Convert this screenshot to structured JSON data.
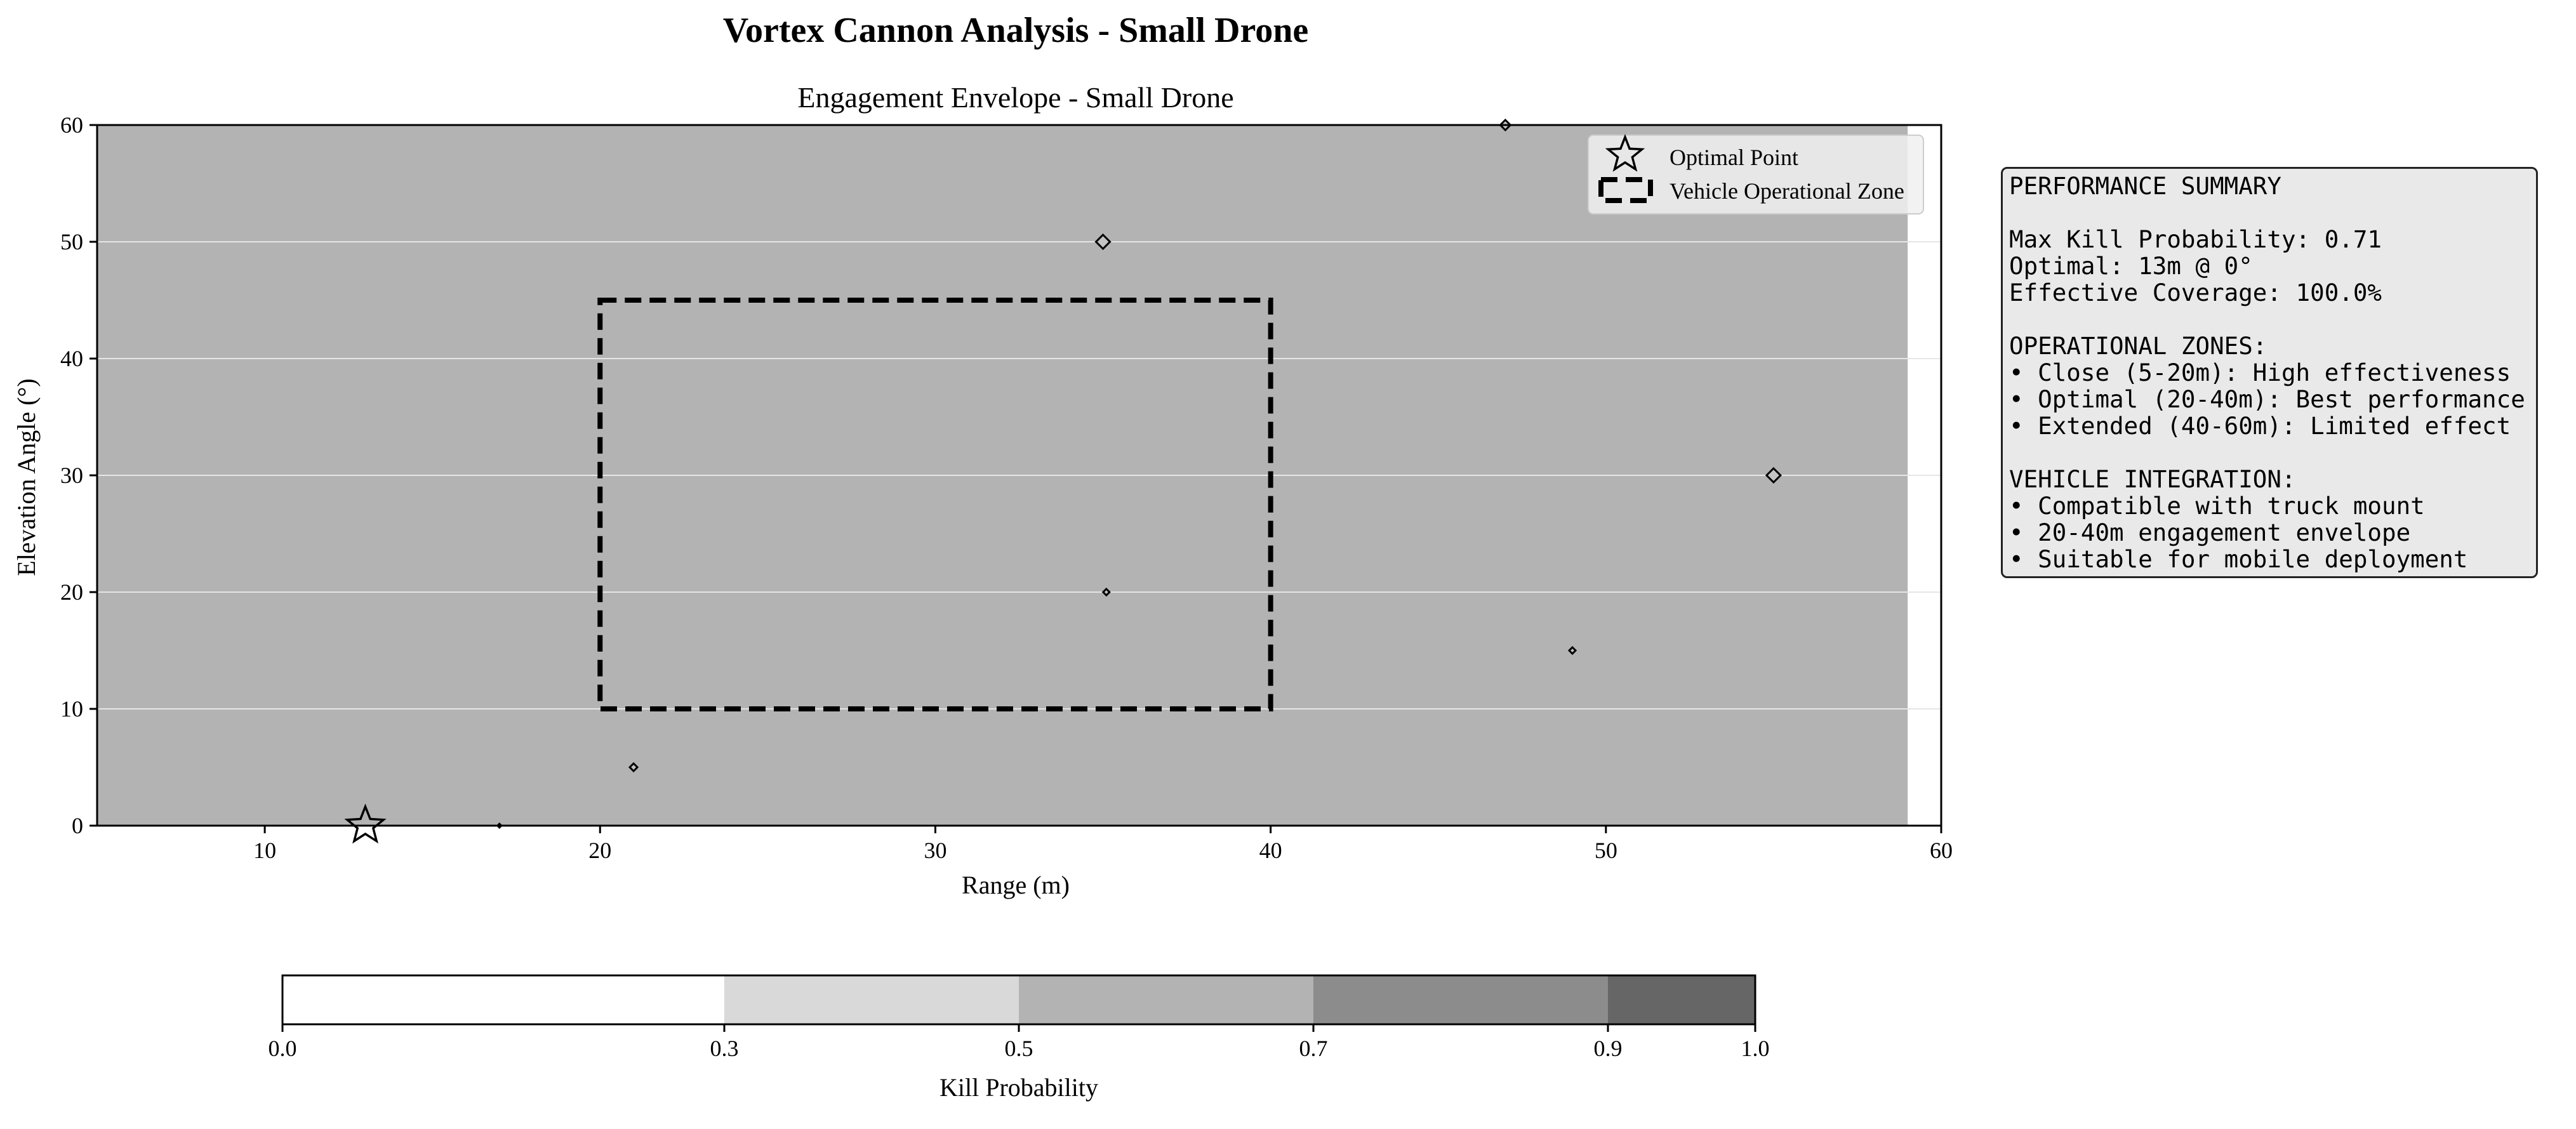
{
  "figure_title": "Vortex Cannon Analysis - Small Drone",
  "colors": {
    "fill_0_03": "#ffffff",
    "fill_03_05": "#d9d9d9",
    "fill_05_07": "#b3b3b3",
    "fill_07_09": "#8c8c8c",
    "fill_09_10": "#666666",
    "outline": "#000000",
    "panel_bg": "#e9e9e9"
  },
  "chart_data": {
    "type": "heatmap",
    "title": "Engagement Envelope - Small Drone",
    "xlabel": "Range (m)",
    "ylabel": "Elevation Angle (°)",
    "xlim": [
      5,
      60
    ],
    "ylim": [
      0,
      60
    ],
    "data_extent": {
      "x": [
        5,
        59
      ],
      "y": [
        0,
        60
      ]
    },
    "x_ticks": [
      10,
      20,
      30,
      40,
      50,
      60
    ],
    "y_ticks": [
      0,
      10,
      20,
      30,
      40,
      50,
      60
    ],
    "field_level": "0.5-0.7",
    "grid": true,
    "contour_islands": [
      {
        "x": 35,
        "y": 50
      },
      {
        "x": 55,
        "y": 30
      },
      {
        "x": 35.1,
        "y": 20
      },
      {
        "x": 49,
        "y": 15
      },
      {
        "x": 21,
        "y": 5
      },
      {
        "x": 47,
        "y": 60
      },
      {
        "x": 17,
        "y": 0
      }
    ],
    "optimal_point": {
      "x": 13,
      "y": 0,
      "label": "Optimal Point"
    },
    "operational_zone": {
      "x": [
        20,
        40
      ],
      "y": [
        10,
        45
      ],
      "label": "Vehicle Operational Zone"
    },
    "legend": {
      "placement": "top-right",
      "entries": [
        "Optimal Point",
        "Vehicle Operational Zone"
      ]
    },
    "colorbar": {
      "label": "Kill Probability",
      "levels": [
        0.0,
        0.3,
        0.5,
        0.7,
        0.9,
        1.0
      ],
      "tick_labels": [
        "0.0",
        "0.3",
        "0.5",
        "0.7",
        "0.9",
        "1.0"
      ],
      "orientation": "horizontal"
    }
  },
  "summary_lines": [
    "PERFORMANCE SUMMARY",
    "",
    "Max Kill Probability: 0.71",
    "Optimal: 13m @ 0°",
    "Effective Coverage: 100.0%",
    "",
    "OPERATIONAL ZONES:",
    "• Close (5-20m): High effectiveness",
    "• Optimal (20-40m): Best performance",
    "• Extended (40-60m): Limited effect",
    "",
    "VEHICLE INTEGRATION:",
    "• Compatible with truck mount",
    "• 20-40m engagement envelope",
    "• Suitable for mobile deployment"
  ]
}
